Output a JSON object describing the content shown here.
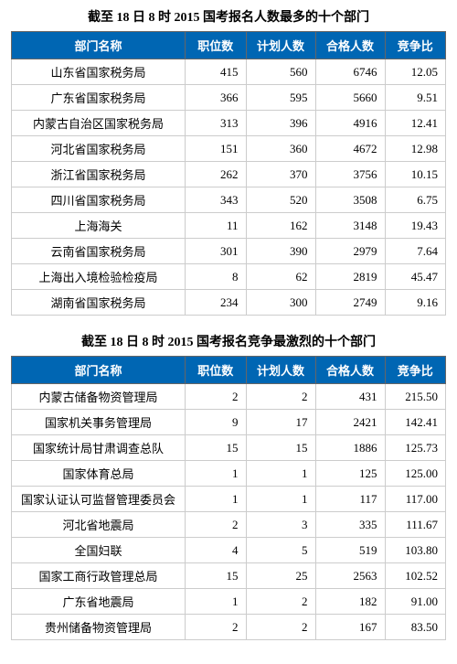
{
  "table1": {
    "title": "截至 18 日 8 时 2015 国考报名人数最多的十个部门",
    "columns": [
      "部门名称",
      "职位数",
      "计划人数",
      "合格人数",
      "竞争比"
    ],
    "rows": [
      [
        "山东省国家税务局",
        "415",
        "560",
        "6746",
        "12.05"
      ],
      [
        "广东省国家税务局",
        "366",
        "595",
        "5660",
        "9.51"
      ],
      [
        "内蒙古自治区国家税务局",
        "313",
        "396",
        "4916",
        "12.41"
      ],
      [
        "河北省国家税务局",
        "151",
        "360",
        "4672",
        "12.98"
      ],
      [
        "浙江省国家税务局",
        "262",
        "370",
        "3756",
        "10.15"
      ],
      [
        "四川省国家税务局",
        "343",
        "520",
        "3508",
        "6.75"
      ],
      [
        "上海海关",
        "11",
        "162",
        "3148",
        "19.43"
      ],
      [
        "云南省国家税务局",
        "301",
        "390",
        "2979",
        "7.64"
      ],
      [
        "上海出入境检验检疫局",
        "8",
        "62",
        "2819",
        "45.47"
      ],
      [
        "湖南省国家税务局",
        "234",
        "300",
        "2749",
        "9.16"
      ]
    ]
  },
  "table2": {
    "title": "截至 18 日 8 时 2015 国考报名竞争最激烈的十个部门",
    "columns": [
      "部门名称",
      "职位数",
      "计划人数",
      "合格人数",
      "竞争比"
    ],
    "rows": [
      [
        "内蒙古储备物资管理局",
        "2",
        "2",
        "431",
        "215.50"
      ],
      [
        "国家机关事务管理局",
        "9",
        "17",
        "2421",
        "142.41"
      ],
      [
        "国家统计局甘肃调查总队",
        "15",
        "15",
        "1886",
        "125.73"
      ],
      [
        "国家体育总局",
        "1",
        "1",
        "125",
        "125.00"
      ],
      [
        "国家认证认可监督管理委员会",
        "1",
        "1",
        "117",
        "117.00"
      ],
      [
        "河北省地震局",
        "2",
        "3",
        "335",
        "111.67"
      ],
      [
        "全国妇联",
        "4",
        "5",
        "519",
        "103.80"
      ],
      [
        "国家工商行政管理总局",
        "15",
        "25",
        "2563",
        "102.52"
      ],
      [
        "广东省地震局",
        "1",
        "2",
        "182",
        "91.00"
      ],
      [
        "贵州储备物资管理局",
        "2",
        "2",
        "167",
        "83.50"
      ]
    ]
  },
  "styles": {
    "header_bg": "#0066b3",
    "header_text": "#ffffff",
    "border_color": "#666666",
    "cell_border": "#cccccc",
    "bg": "#ffffff"
  }
}
